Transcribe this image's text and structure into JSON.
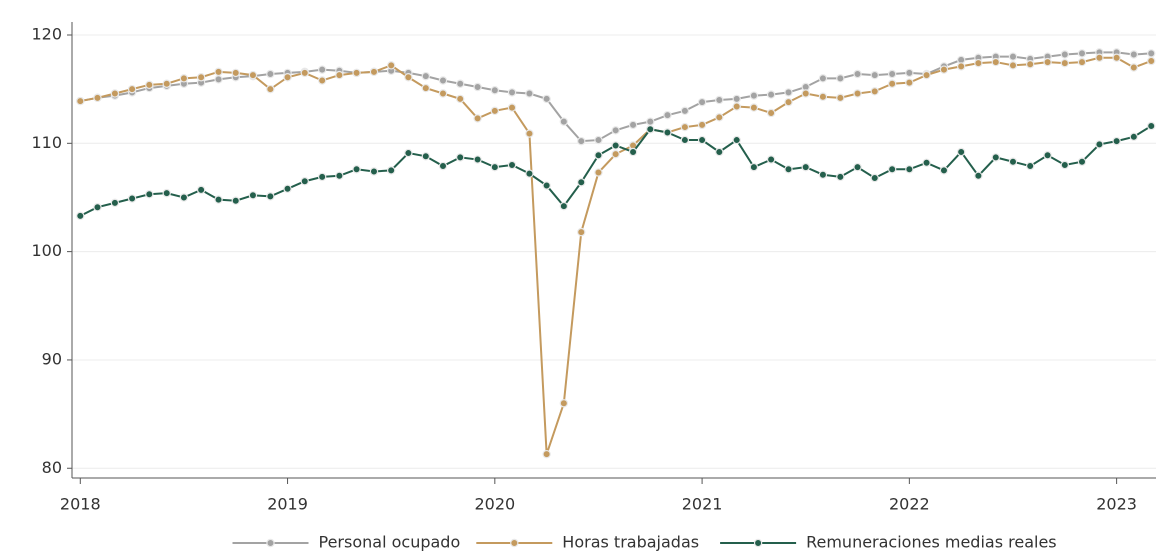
{
  "chart_data": {
    "type": "line",
    "x": [
      2018,
      2018.083,
      2018.167,
      2018.25,
      2018.333,
      2018.417,
      2018.5,
      2018.583,
      2018.667,
      2018.75,
      2018.833,
      2018.917,
      2019,
      2019.083,
      2019.167,
      2019.25,
      2019.333,
      2019.417,
      2019.5,
      2019.583,
      2019.667,
      2019.75,
      2019.833,
      2019.917,
      2020,
      2020.083,
      2020.167,
      2020.25,
      2020.333,
      2020.417,
      2020.5,
      2020.583,
      2020.667,
      2020.75,
      2020.833,
      2020.917,
      2021,
      2021.083,
      2021.167,
      2021.25,
      2021.333,
      2021.417,
      2021.5,
      2021.583,
      2021.667,
      2021.75,
      2021.833,
      2021.917,
      2022,
      2022.083,
      2022.167,
      2022.25,
      2022.333,
      2022.417,
      2022.5,
      2022.583,
      2022.667,
      2022.75,
      2022.833,
      2022.917,
      2023,
      2023.083,
      2023.167
    ],
    "series": [
      {
        "name": "Personal ocupado",
        "color": "#a3a3a3",
        "values": [
          113.9,
          114.2,
          114.4,
          114.7,
          115.1,
          115.3,
          115.5,
          115.6,
          115.9,
          116.1,
          116.2,
          116.4,
          116.5,
          116.6,
          116.8,
          116.7,
          116.5,
          116.6,
          116.7,
          116.5,
          116.2,
          115.8,
          115.5,
          115.2,
          114.9,
          114.7,
          114.6,
          114.1,
          112.0,
          110.2,
          110.3,
          111.2,
          111.7,
          112.0,
          112.6,
          113.0,
          113.8,
          114.0,
          114.1,
          114.4,
          114.5,
          114.7,
          115.2,
          116.0,
          116.0,
          116.4,
          116.3,
          116.4,
          116.5,
          116.4,
          117.1,
          117.7,
          117.9,
          118.0,
          118.0,
          117.8,
          118.0,
          118.2,
          118.3,
          118.4,
          118.4,
          118.2,
          118.3
        ]
      },
      {
        "name": "Horas trabajadas",
        "color": "#c49a5e",
        "values": [
          113.9,
          114.2,
          114.6,
          115.0,
          115.4,
          115.5,
          116.0,
          116.1,
          116.6,
          116.5,
          116.3,
          115.0,
          116.1,
          116.5,
          115.8,
          116.3,
          116.5,
          116.6,
          117.2,
          116.1,
          115.1,
          114.6,
          114.1,
          112.3,
          113.0,
          113.3,
          110.9,
          81.3,
          86.0,
          101.8,
          107.3,
          109.0,
          109.8,
          111.3,
          111.0,
          111.5,
          111.7,
          112.4,
          113.4,
          113.3,
          112.8,
          113.8,
          114.6,
          114.3,
          114.2,
          114.6,
          114.8,
          115.5,
          115.6,
          116.3,
          116.8,
          117.1,
          117.4,
          117.5,
          117.2,
          117.3,
          117.5,
          117.4,
          117.5,
          117.9,
          117.9,
          117.0,
          117.6
        ]
      },
      {
        "name": "Remuneraciones medias reales",
        "color": "#245f4c",
        "values": [
          103.3,
          104.1,
          104.5,
          104.9,
          105.3,
          105.4,
          105.0,
          105.7,
          104.8,
          104.7,
          105.2,
          105.1,
          105.8,
          106.5,
          106.9,
          107.0,
          107.6,
          107.4,
          107.5,
          109.1,
          108.8,
          107.9,
          108.7,
          108.5,
          107.8,
          108.0,
          107.2,
          106.1,
          104.2,
          106.4,
          108.9,
          109.8,
          109.2,
          111.3,
          111.0,
          110.3,
          110.3,
          109.2,
          110.3,
          107.8,
          108.5,
          107.6,
          107.8,
          107.1,
          106.9,
          107.8,
          106.8,
          107.6,
          107.6,
          108.2,
          107.5,
          109.2,
          107.0,
          108.7,
          108.3,
          107.9,
          108.9,
          108.0,
          108.3,
          109.9,
          110.2,
          110.6,
          111.6
        ]
      }
    ],
    "xlim": [
      2017.96,
      2023.19
    ],
    "xticks": [
      2018,
      2019,
      2020,
      2021,
      2022,
      2023
    ],
    "ylim": [
      79.1,
      121.2
    ],
    "yticks": [
      80,
      90,
      100,
      110,
      120
    ],
    "grid": true,
    "legend": "bottom"
  }
}
